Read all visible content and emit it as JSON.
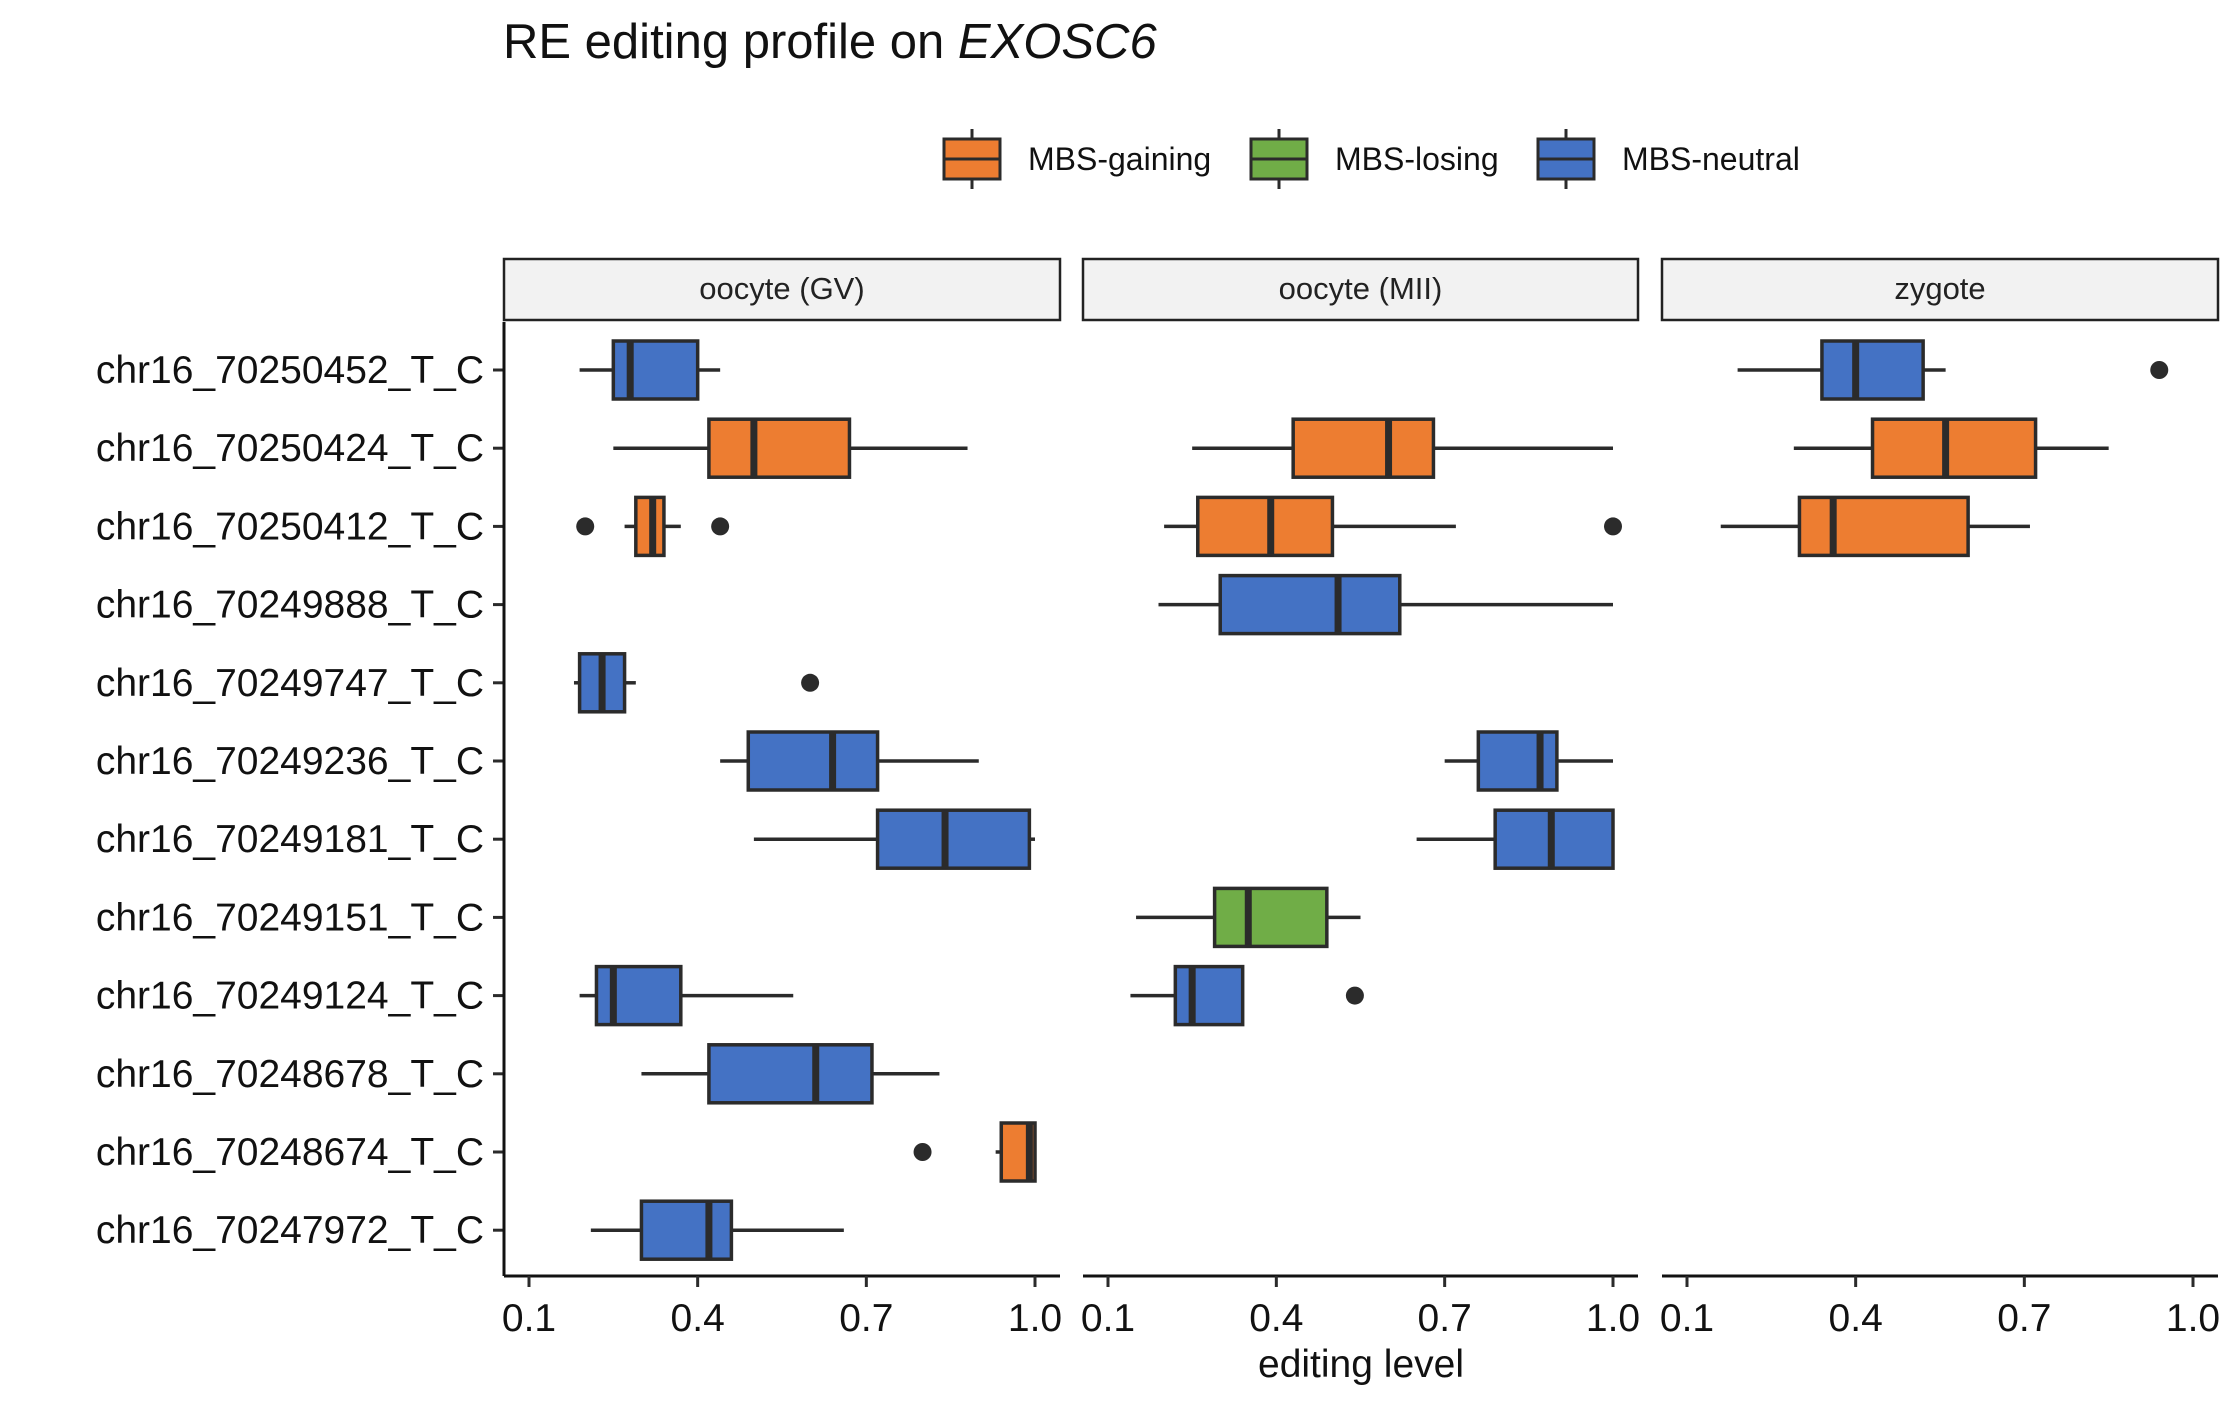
{
  "chart_data": {
    "type": "boxplot",
    "title_prefix": "RE editing profile on ",
    "title_gene": "EXOSC6",
    "xlabel": "editing level",
    "xlim": [
      0.07,
      1.0
    ],
    "xticks": [
      0.1,
      0.4,
      0.7,
      1.0
    ],
    "xtick_labels": [
      "0.1",
      "0.4",
      "0.7",
      "1.0"
    ],
    "legend_position": "top",
    "legend": [
      {
        "name": "MBS-gaining",
        "color": "#ED7D31"
      },
      {
        "name": "MBS-losing",
        "color": "#70AD47"
      },
      {
        "name": "MBS-neutral",
        "color": "#4472C4"
      }
    ],
    "sites": [
      "chr16_70250452_T_C",
      "chr16_70250424_T_C",
      "chr16_70250412_T_C",
      "chr16_70249888_T_C",
      "chr16_70249747_T_C",
      "chr16_70249236_T_C",
      "chr16_70249181_T_C",
      "chr16_70249151_T_C",
      "chr16_70249124_T_C",
      "chr16_70248678_T_C",
      "chr16_70248674_T_C",
      "chr16_70247972_T_C"
    ],
    "facets": [
      {
        "name": "oocyte (GV)",
        "boxes": [
          {
            "site": "chr16_70250452_T_C",
            "group": "MBS-neutral",
            "whisker_low": 0.19,
            "q1": 0.25,
            "median": 0.28,
            "q3": 0.4,
            "whisker_high": 0.44,
            "outliers": []
          },
          {
            "site": "chr16_70250424_T_C",
            "group": "MBS-gaining",
            "whisker_low": 0.25,
            "q1": 0.42,
            "median": 0.5,
            "q3": 0.67,
            "whisker_high": 0.88,
            "outliers": []
          },
          {
            "site": "chr16_70250412_T_C",
            "group": "MBS-gaining",
            "whisker_low": 0.27,
            "q1": 0.29,
            "median": 0.32,
            "q3": 0.34,
            "whisker_high": 0.37,
            "outliers": [
              0.2,
              0.44
            ]
          },
          {
            "site": "chr16_70249747_T_C",
            "group": "MBS-neutral",
            "whisker_low": 0.18,
            "q1": 0.19,
            "median": 0.23,
            "q3": 0.27,
            "whisker_high": 0.29,
            "outliers": [
              0.6
            ]
          },
          {
            "site": "chr16_70249236_T_C",
            "group": "MBS-neutral",
            "whisker_low": 0.44,
            "q1": 0.49,
            "median": 0.64,
            "q3": 0.72,
            "whisker_high": 0.9,
            "outliers": []
          },
          {
            "site": "chr16_70249181_T_C",
            "group": "MBS-neutral",
            "whisker_low": 0.5,
            "q1": 0.72,
            "median": 0.84,
            "q3": 0.99,
            "whisker_high": 1.0,
            "outliers": []
          },
          {
            "site": "chr16_70249124_T_C",
            "group": "MBS-neutral",
            "whisker_low": 0.19,
            "q1": 0.22,
            "median": 0.25,
            "q3": 0.37,
            "whisker_high": 0.57,
            "outliers": []
          },
          {
            "site": "chr16_70248678_T_C",
            "group": "MBS-neutral",
            "whisker_low": 0.3,
            "q1": 0.42,
            "median": 0.61,
            "q3": 0.71,
            "whisker_high": 0.83,
            "outliers": []
          },
          {
            "site": "chr16_70248674_T_C",
            "group": "MBS-gaining",
            "whisker_low": 0.93,
            "q1": 0.94,
            "median": 0.99,
            "q3": 1.0,
            "whisker_high": 1.0,
            "outliers": [
              0.8
            ]
          },
          {
            "site": "chr16_70247972_T_C",
            "group": "MBS-neutral",
            "whisker_low": 0.21,
            "q1": 0.3,
            "median": 0.42,
            "q3": 0.46,
            "whisker_high": 0.66,
            "outliers": []
          }
        ]
      },
      {
        "name": "oocyte (MII)",
        "boxes": [
          {
            "site": "chr16_70250424_T_C",
            "group": "MBS-gaining",
            "whisker_low": 0.25,
            "q1": 0.43,
            "median": 0.6,
            "q3": 0.68,
            "whisker_high": 1.0,
            "outliers": []
          },
          {
            "site": "chr16_70250412_T_C",
            "group": "MBS-gaining",
            "whisker_low": 0.2,
            "q1": 0.26,
            "median": 0.39,
            "q3": 0.5,
            "whisker_high": 0.72,
            "outliers": [
              1.0
            ]
          },
          {
            "site": "chr16_70249888_T_C",
            "group": "MBS-neutral",
            "whisker_low": 0.19,
            "q1": 0.3,
            "median": 0.51,
            "q3": 0.62,
            "whisker_high": 1.0,
            "outliers": []
          },
          {
            "site": "chr16_70249236_T_C",
            "group": "MBS-neutral",
            "whisker_low": 0.7,
            "q1": 0.76,
            "median": 0.87,
            "q3": 0.9,
            "whisker_high": 1.0,
            "outliers": []
          },
          {
            "site": "chr16_70249181_T_C",
            "group": "MBS-neutral",
            "whisker_low": 0.65,
            "q1": 0.79,
            "median": 0.89,
            "q3": 1.0,
            "whisker_high": 1.0,
            "outliers": []
          },
          {
            "site": "chr16_70249151_T_C",
            "group": "MBS-losing",
            "whisker_low": 0.15,
            "q1": 0.29,
            "median": 0.35,
            "q3": 0.49,
            "whisker_high": 0.55,
            "outliers": []
          },
          {
            "site": "chr16_70249124_T_C",
            "group": "MBS-neutral",
            "whisker_low": 0.14,
            "q1": 0.22,
            "median": 0.25,
            "q3": 0.34,
            "whisker_high": 0.34,
            "outliers": [
              0.54
            ]
          }
        ]
      },
      {
        "name": "zygote",
        "boxes": [
          {
            "site": "chr16_70250452_T_C",
            "group": "MBS-neutral",
            "whisker_low": 0.19,
            "q1": 0.34,
            "median": 0.4,
            "q3": 0.52,
            "whisker_high": 0.56,
            "outliers": [
              0.94
            ]
          },
          {
            "site": "chr16_70250424_T_C",
            "group": "MBS-gaining",
            "whisker_low": 0.29,
            "q1": 0.43,
            "median": 0.56,
            "q3": 0.72,
            "whisker_high": 0.85,
            "outliers": []
          },
          {
            "site": "chr16_70250412_T_C",
            "group": "MBS-gaining",
            "whisker_low": 0.16,
            "q1": 0.3,
            "median": 0.36,
            "q3": 0.6,
            "whisker_high": 0.71,
            "outliers": []
          }
        ]
      }
    ]
  }
}
